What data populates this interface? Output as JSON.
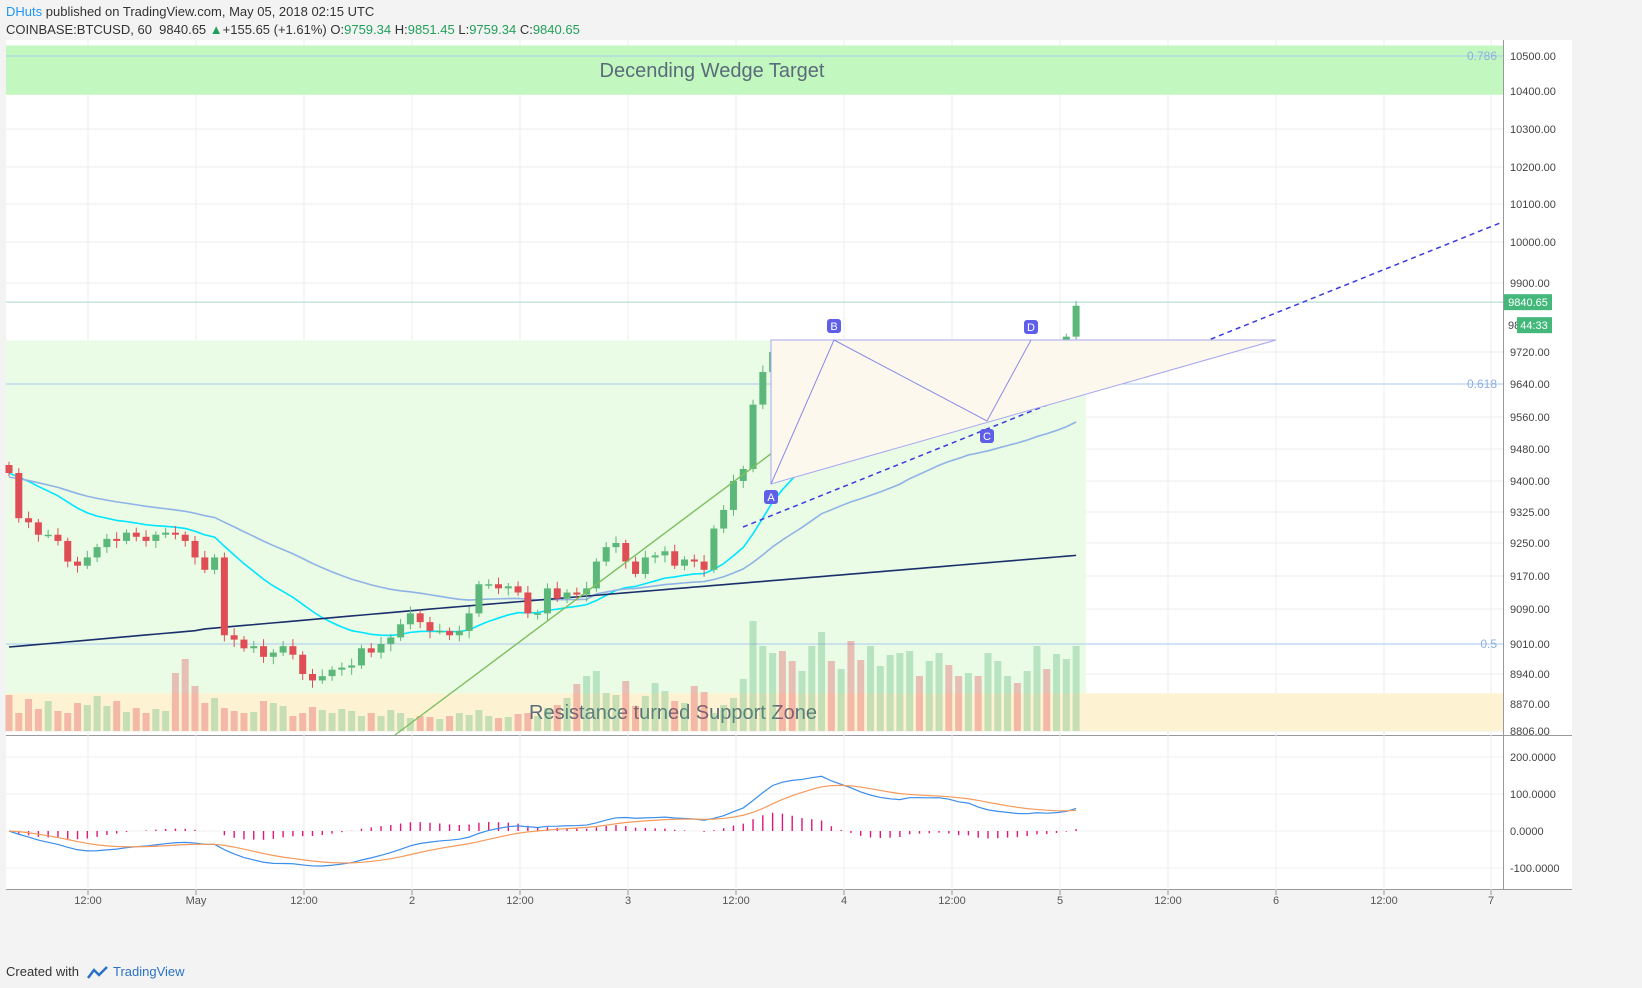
{
  "header": {
    "author": "DHuts",
    "published_text": "published on TradingView.com, May 05, 2018 02:15 UTC",
    "symbol": "COINBASE:BTCUSD, 60",
    "last": "9840.65",
    "change": "+155.65 (+1.61%)",
    "o_label": "O:",
    "o": "9759.34",
    "h_label": "H:",
    "h": "9851.45",
    "l_label": "L:",
    "l": "9759.34",
    "c_label": "C:",
    "c": "9840.65"
  },
  "footer": {
    "created_with": "Created with",
    "brand": "TradingView"
  },
  "colors": {
    "up": "#5cb87a",
    "down": "#e04e55",
    "ema_fast": "#00e5ff",
    "ema_mid": "#8fb3e6",
    "ema_slow": "#1a2f6b",
    "trendline": "#3a3ae0",
    "target_zone": "#c3f7c0",
    "support_zone": "#fdf3d2",
    "macd": "#3d8eea",
    "signal": "#f49a5b",
    "hist": "#e0157b"
  },
  "chart_data": {
    "type": "candlestick",
    "symbol": "COINBASE:BTCUSD",
    "interval": "60",
    "price_axis": {
      "ticks": [
        "10500.00",
        "10400.00",
        "10300.00",
        "10200.00",
        "10100.00",
        "10000.00",
        "9900.00",
        "9720.00",
        "9640.00",
        "9560.00",
        "9480.00",
        "9400.00",
        "9325.00",
        "9250.00",
        "9170.00",
        "9090.00",
        "9010.00",
        "8940.00",
        "8870.00",
        "8806.00"
      ],
      "last_price_label": "9840.65",
      "countdown_label": "44:33",
      "partial_label": "98"
    },
    "time_axis": {
      "ticks": [
        "12:00",
        "May",
        "12:00",
        "2",
        "12:00",
        "3",
        "12:00",
        "4",
        "12:00",
        "5",
        "12:00",
        "6",
        "12:00",
        "7"
      ]
    },
    "fib_levels": [
      {
        "label": "0.786",
        "price": 10500
      },
      {
        "label": "0.618",
        "price": 9640
      },
      {
        "label": "0.5",
        "price": 9010
      }
    ],
    "zones": [
      {
        "label": "Decending Wedge Target",
        "from": 10390,
        "to": 10530
      },
      {
        "label": "Resistance turned Support Zone",
        "from": 8806,
        "to": 8895
      }
    ],
    "pattern_points": [
      "A",
      "B",
      "C",
      "D"
    ],
    "closes": [
      9420,
      9310,
      9300,
      9270,
      9270,
      9255,
      9205,
      9195,
      9215,
      9240,
      9260,
      9255,
      9275,
      9265,
      9255,
      9270,
      9275,
      9270,
      9255,
      9215,
      9185,
      9215,
      9030,
      9020,
      9000,
      9005,
      8980,
      8990,
      9005,
      8985,
      8940,
      8925,
      8935,
      8950,
      8955,
      8960,
      9000,
      8990,
      9010,
      9025,
      9055,
      9080,
      9060,
      9040,
      9040,
      9030,
      9040,
      9080,
      9150,
      9150,
      9140,
      9145,
      9130,
      9080,
      9080,
      9140,
      9115,
      9130,
      9125,
      9140,
      9205,
      9240,
      9250,
      9205,
      9175,
      9215,
      9220,
      9230,
      9195,
      9210,
      9205,
      9185,
      9285,
      9330,
      9400,
      9430,
      9590,
      9670,
      9720,
      9660,
      9650,
      9655,
      9710,
      9730,
      9560,
      9585,
      9575,
      9545,
      9560,
      9580,
      9610,
      9630,
      9730,
      9690,
      9700,
      9720,
      9680,
      9640,
      9680,
      9590,
      9610,
      9640,
      9655,
      9650,
      9680,
      9725,
      9690,
      9730,
      9760,
      9840.65
    ],
    "volume": [
      36,
      18,
      32,
      22,
      30,
      20,
      18,
      28,
      26,
      35,
      25,
      30,
      19,
      23,
      18,
      22,
      20,
      58,
      72,
      45,
      28,
      33,
      23,
      20,
      18,
      19,
      30,
      28,
      25,
      15,
      18,
      24,
      21,
      18,
      22,
      20,
      15,
      18,
      15,
      21,
      18,
      13,
      15,
      14,
      12,
      15,
      18,
      16,
      21,
      15,
      13,
      14,
      17,
      18,
      15,
      23,
      26,
      33,
      47,
      55,
      60,
      38,
      36,
      50,
      25,
      35,
      48,
      40,
      30,
      28,
      45,
      39,
      18,
      26,
      33,
      52,
      110,
      85,
      78,
      80,
      70,
      60,
      85,
      99,
      70,
      62,
      90,
      71,
      85,
      65,
      76,
      78,
      80,
      55,
      70,
      78,
      66,
      55,
      58,
      55,
      78,
      70,
      55,
      48,
      60,
      85,
      62,
      77,
      72,
      85
    ],
    "macd": {
      "ticks": [
        "200.0000",
        "100.0000",
        "0.0000",
        "-100.0000"
      ]
    }
  }
}
